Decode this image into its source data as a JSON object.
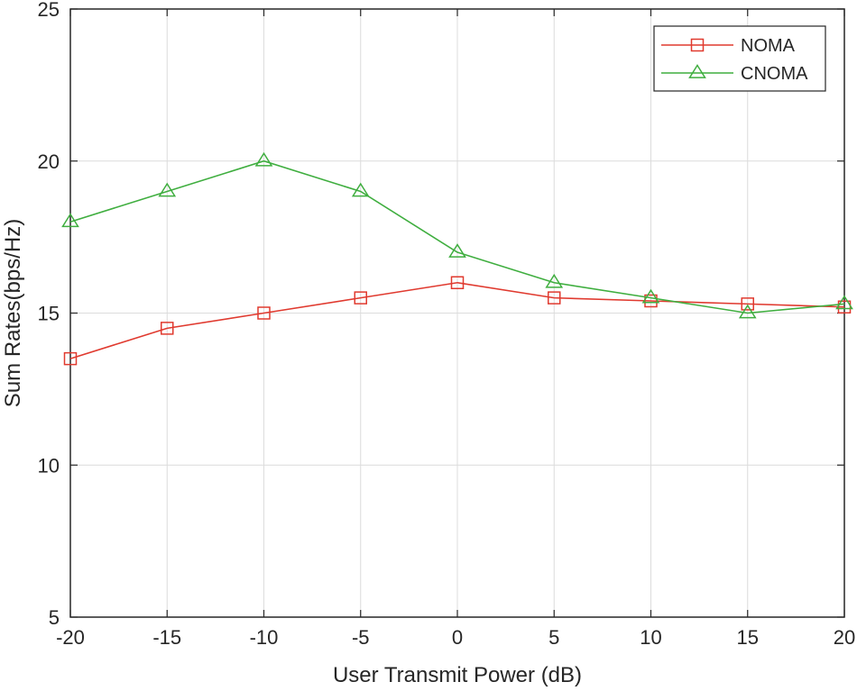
{
  "chart_data": {
    "type": "line",
    "title": "",
    "xlabel": "User Transmit Power (dB)",
    "ylabel": "Sum Rates(bps/Hz)",
    "x": [
      -20,
      -15,
      -10,
      -5,
      0,
      5,
      10,
      15,
      20
    ],
    "xlim": [
      -20,
      20
    ],
    "ylim": [
      5,
      25
    ],
    "xticks": [
      "-20",
      "-15",
      "-10",
      "-5",
      "0",
      "5",
      "10",
      "15",
      "20"
    ],
    "yticks": [
      "5",
      "10",
      "15",
      "20",
      "25"
    ],
    "grid": true,
    "legend_position": "top-right",
    "series": [
      {
        "name": "NOMA",
        "color": "#e03a2f",
        "marker": "square",
        "values": [
          13.5,
          14.5,
          15.0,
          15.5,
          16.0,
          15.5,
          15.4,
          15.3,
          15.2
        ]
      },
      {
        "name": "CNOMA",
        "color": "#3fae3f",
        "marker": "triangle",
        "values": [
          18.0,
          19.0,
          20.0,
          19.0,
          17.0,
          16.0,
          15.5,
          15.0,
          15.3
        ]
      }
    ]
  }
}
